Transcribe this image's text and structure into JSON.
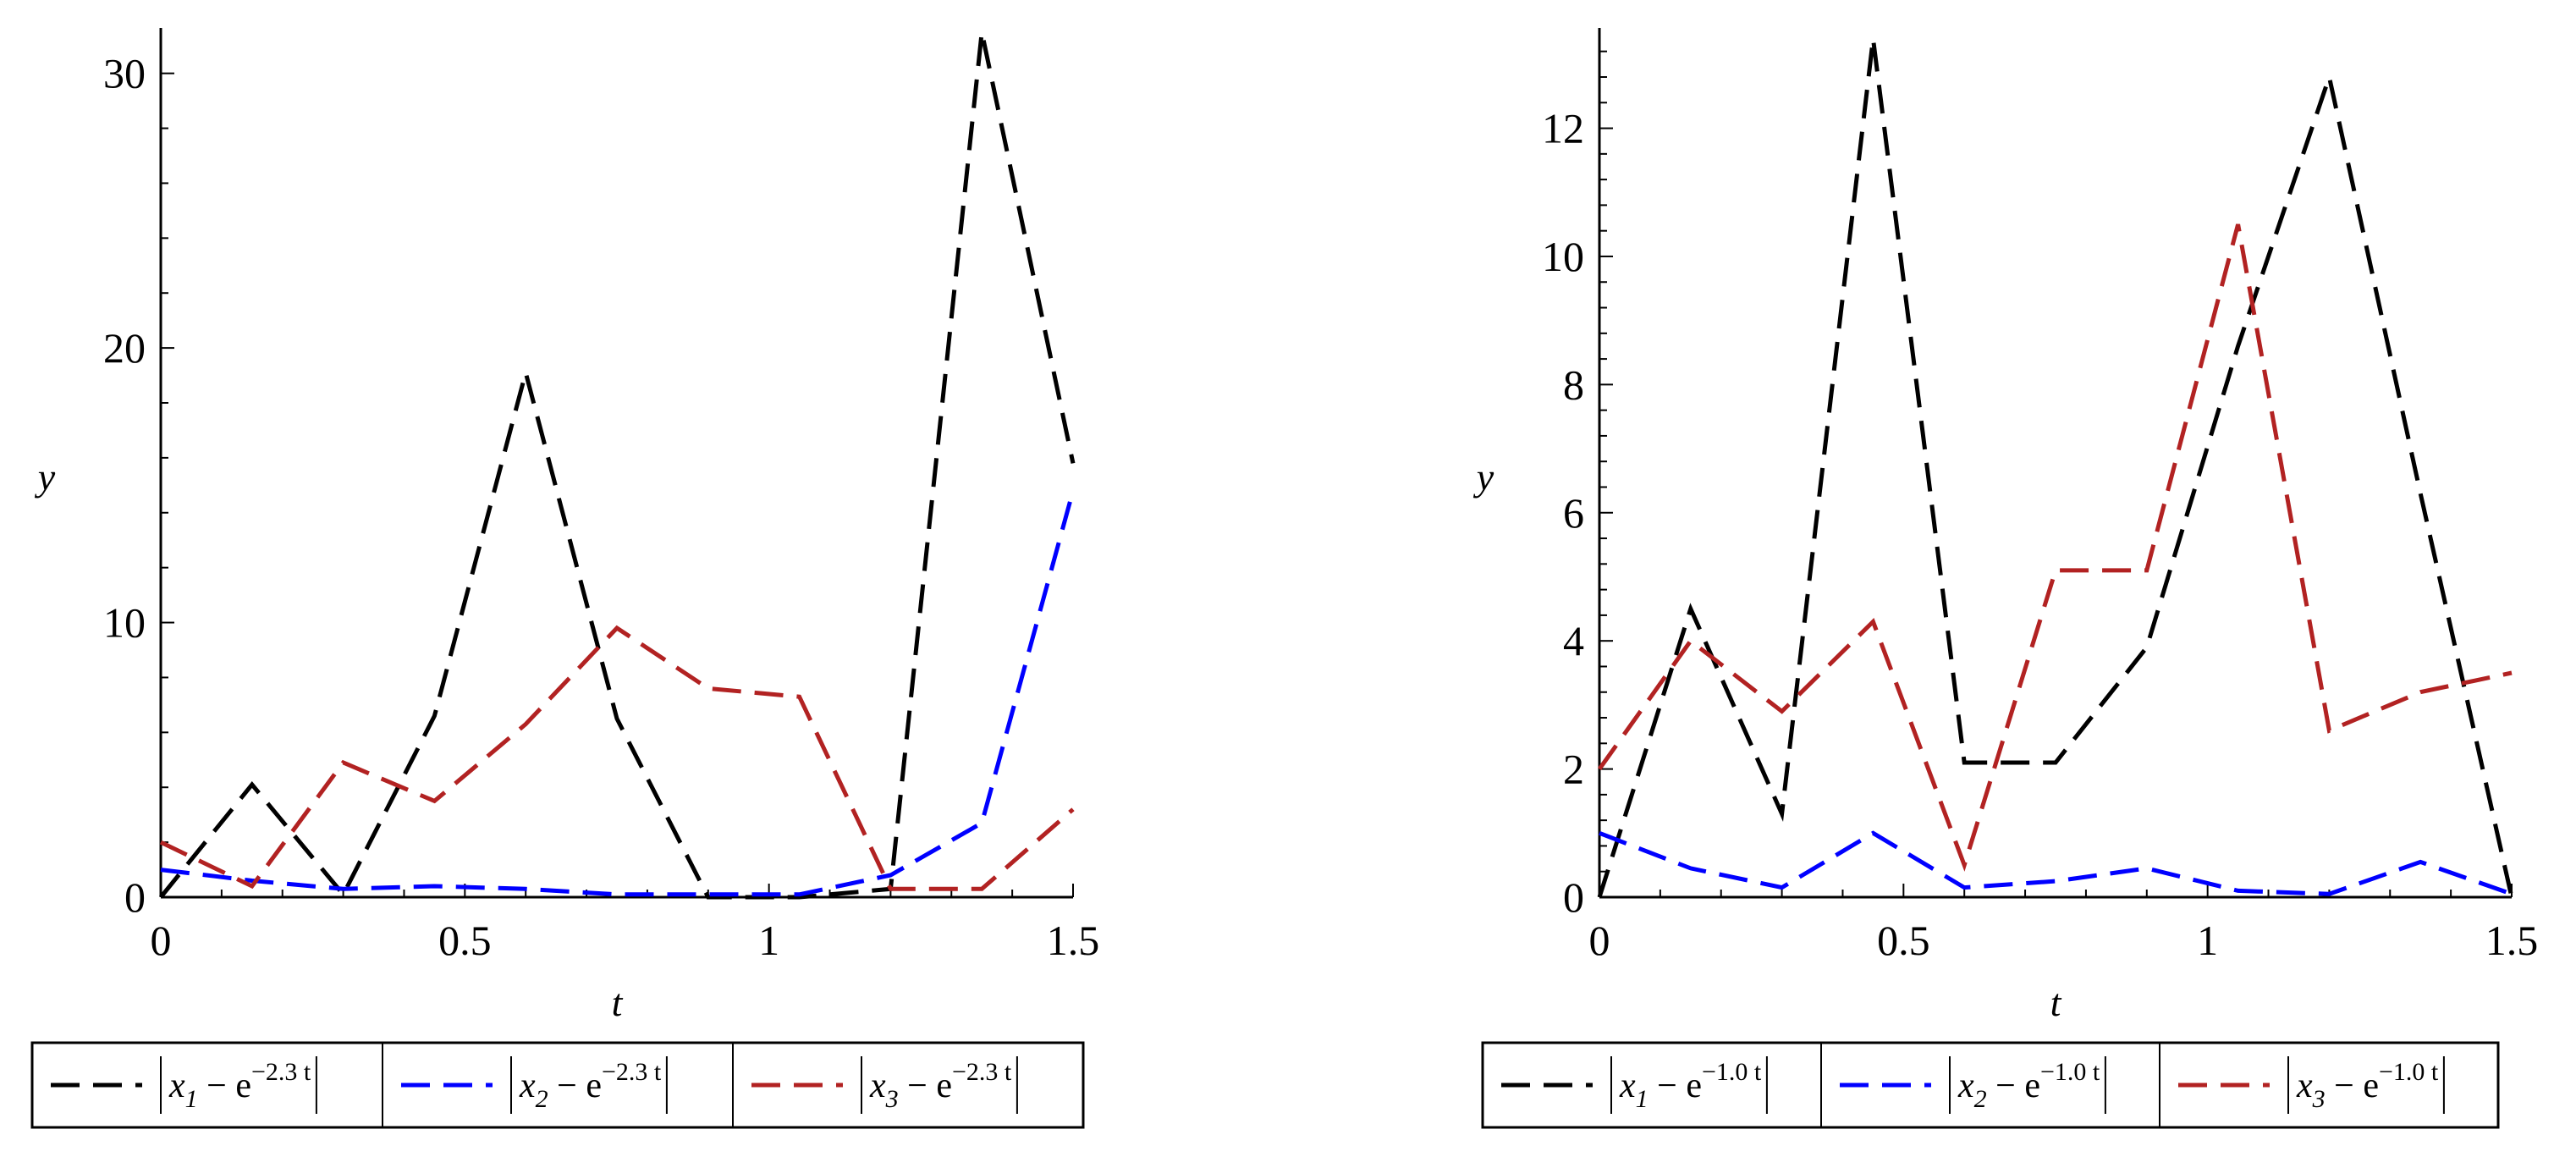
{
  "chart_data": [
    {
      "type": "line",
      "xlabel": "t",
      "ylabel": "y",
      "xlim": [
        0,
        1.5
      ],
      "ylim": [
        0,
        31.5
      ],
      "x_ticks": [
        "0",
        "0.5",
        "1",
        "1.5"
      ],
      "y_ticks": [
        "0",
        "10",
        "20",
        "30"
      ],
      "y_tick_values": [
        0,
        10,
        20,
        30
      ],
      "x_tick_values": [
        0,
        0.5,
        1,
        1.5
      ],
      "legend_position": "bottom",
      "grid": false,
      "series": [
        {
          "label_var": "x",
          "label_sub": "1",
          "label_exp": "e",
          "label_sup": "−2.3 t",
          "color": "#000000",
          "x": [
            0,
            0.15,
            0.3,
            0.45,
            0.6,
            0.75,
            0.9,
            1.05,
            1.2,
            1.35,
            1.5
          ],
          "y": [
            0,
            4.1,
            0.1,
            6.6,
            19.1,
            6.5,
            0,
            0,
            0.3,
            31.5,
            15.8
          ]
        },
        {
          "label_var": "x",
          "label_sub": "2",
          "label_exp": "e",
          "label_sup": "−2.3 t",
          "color": "#0000ff",
          "x": [
            0,
            0.15,
            0.3,
            0.45,
            0.6,
            0.75,
            0.9,
            1.05,
            1.2,
            1.35,
            1.5
          ],
          "y": [
            1.0,
            0.6,
            0.3,
            0.4,
            0.3,
            0.1,
            0.1,
            0.1,
            0.8,
            2.7,
            14.8
          ]
        },
        {
          "label_var": "x",
          "label_sub": "3",
          "label_exp": "e",
          "label_sup": "−2.3 t",
          "color": "#b22222",
          "x": [
            0,
            0.15,
            0.3,
            0.45,
            0.6,
            0.75,
            0.9,
            1.05,
            1.2,
            1.35,
            1.5
          ],
          "y": [
            2.0,
            0.4,
            4.9,
            3.5,
            6.3,
            9.8,
            7.6,
            7.3,
            0.3,
            0.3,
            3.2
          ]
        }
      ]
    },
    {
      "type": "line",
      "xlabel": "t",
      "ylabel": "y",
      "xlim": [
        0,
        1.5
      ],
      "ylim": [
        0,
        13.5
      ],
      "x_ticks": [
        "0",
        "0.5",
        "1",
        "1.5"
      ],
      "y_ticks": [
        "0",
        "2",
        "4",
        "6",
        "8",
        "10",
        "12"
      ],
      "y_tick_values": [
        0,
        2,
        4,
        6,
        8,
        10,
        12
      ],
      "x_tick_values": [
        0,
        0.5,
        1,
        1.5
      ],
      "legend_position": "bottom",
      "grid": false,
      "series": [
        {
          "label_var": "x",
          "label_sub": "1",
          "label_exp": "e",
          "label_sup": "−1.0 t",
          "color": "#000000",
          "x": [
            0,
            0.15,
            0.3,
            0.45,
            0.6,
            0.75,
            0.9,
            1.05,
            1.2,
            1.35,
            1.5
          ],
          "y": [
            0,
            4.5,
            1.3,
            13.4,
            2.1,
            2.1,
            3.9,
            8.6,
            12.8,
            6.3,
            0
          ]
        },
        {
          "label_var": "x",
          "label_sub": "2",
          "label_exp": "e",
          "label_sup": "−1.0 t",
          "color": "#0000ff",
          "x": [
            0,
            0.15,
            0.3,
            0.45,
            0.6,
            0.75,
            0.9,
            1.05,
            1.2,
            1.35,
            1.5
          ],
          "y": [
            1.0,
            0.45,
            0.15,
            1.0,
            0.15,
            0.25,
            0.45,
            0.1,
            0.05,
            0.55,
            0.05
          ]
        },
        {
          "label_var": "x",
          "label_sub": "3",
          "label_exp": "e",
          "label_sup": "−1.0 t",
          "color": "#b22222",
          "x": [
            0,
            0.15,
            0.3,
            0.45,
            0.6,
            0.75,
            0.9,
            1.05,
            1.2,
            1.35,
            1.5
          ],
          "y": [
            2.0,
            4.0,
            2.9,
            4.3,
            0.5,
            5.1,
            5.1,
            10.5,
            2.6,
            3.2,
            3.5
          ]
        }
      ]
    }
  ]
}
